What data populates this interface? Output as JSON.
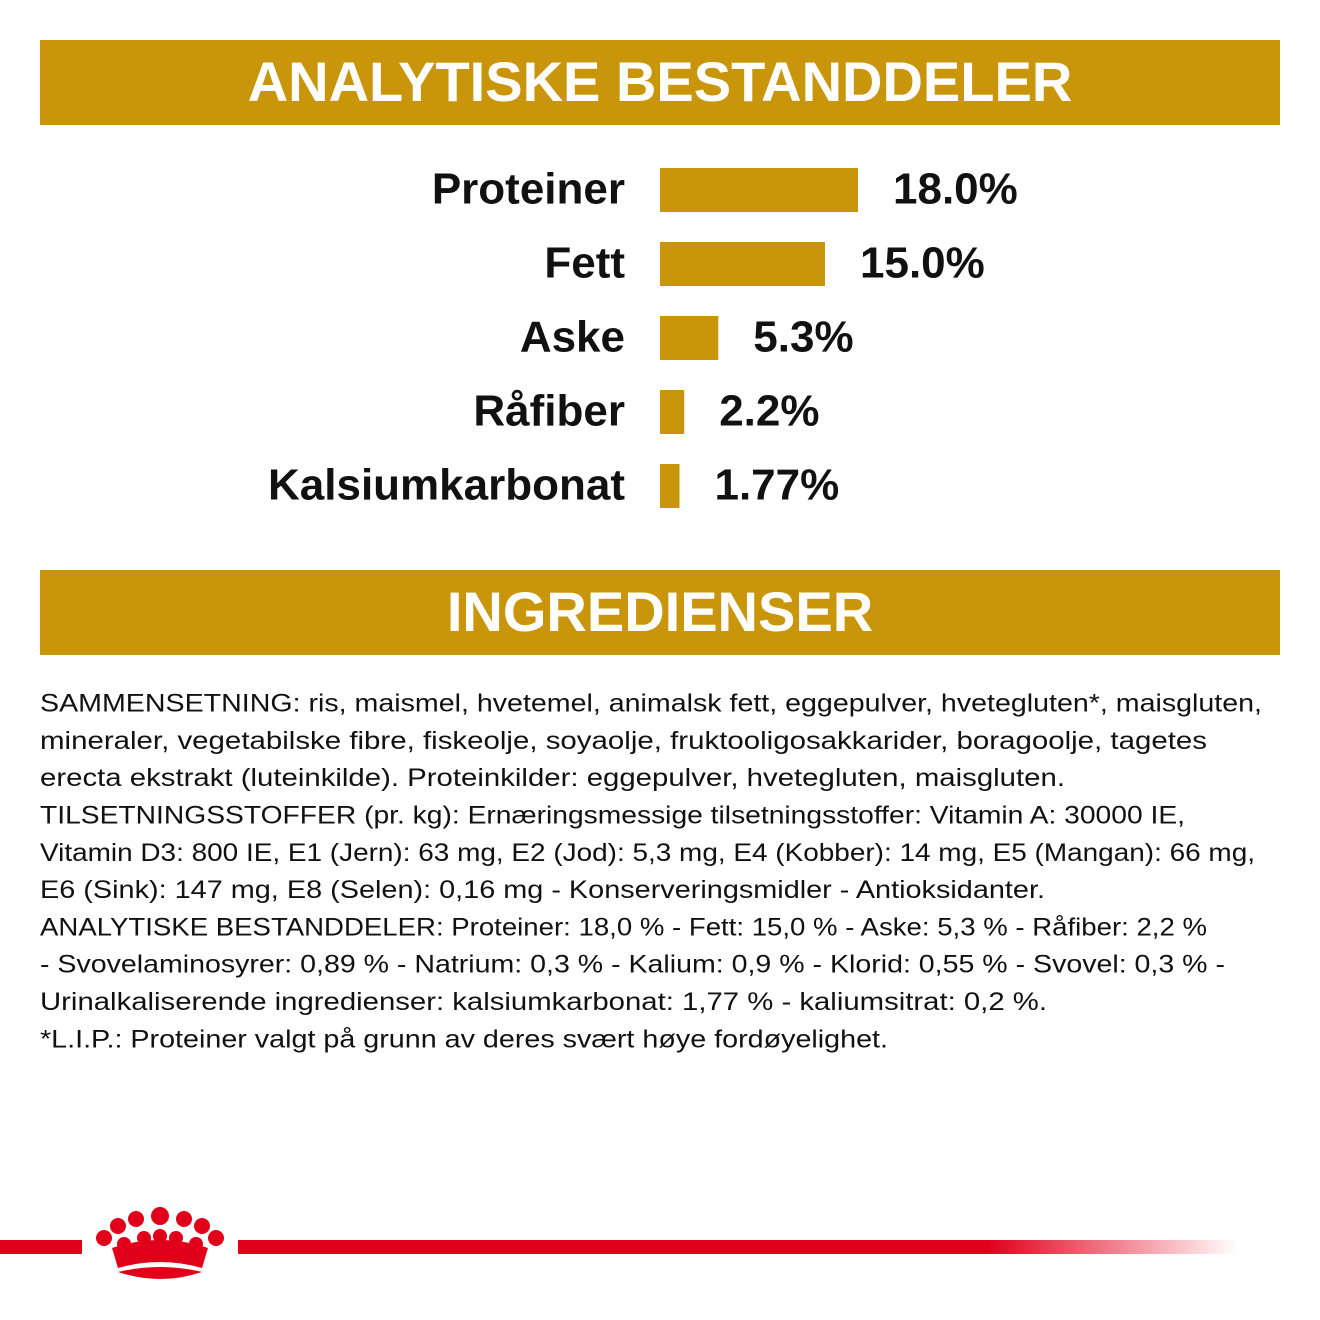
{
  "header": {
    "title": "ANALYTISKE BESTANDDELER"
  },
  "chart_data": {
    "type": "bar",
    "orientation": "horizontal",
    "color": "#c9960b",
    "categories": [
      "Proteiner",
      "Fett",
      "Aske",
      "Råfiber",
      "Kalsiumkarbonat"
    ],
    "values": [
      18.0,
      15.0,
      5.3,
      2.2,
      1.77
    ],
    "value_labels": [
      "18.0%",
      "15.0%",
      "5.3%",
      "2.2%",
      "1.77%"
    ]
  },
  "ingredients": {
    "title": "INGREDIENSER",
    "lines": [
      "SAMMENSETNING: ris, maismel, hvetemel, animalsk fett, eggepulver, hvetegluten*, maisgluten,",
      "mineraler, vegetabilske fibre, fiskeolje, soyaolje, fruktooligosakkarider, boragoolje, tagetes",
      "erecta ekstrakt (luteinkilde). Proteinkilder: eggepulver, hvetegluten, maisgluten.",
      "TILSETNINGSSTOFFER (pr. kg): Ernæringsmessige tilsetningsstoffer: Vitamin A: 30000 IE,",
      "Vitamin D3: 800 IE, E1 (Jern): 63 mg, E2 (Jod): 5,3 mg, E4 (Kobber): 14 mg, E5 (Mangan): 66 mg,",
      "E6 (Sink): 147 mg, E8 (Selen): 0,16 mg - Konserveringsmidler - Antioksidanter.",
      "ANALYTISKE BESTANDDELER: Proteiner: 18,0 % - Fett: 15,0 % - Aske: 5,3 % - Råfiber: 2,2 %",
      "- Svovelaminosyrer: 0,89 % - Natrium: 0,3 % - Kalium: 0,9 % - Klorid: 0,55 % - Svovel: 0,3 % -",
      "Urinalkaliserende ingredienser: kalsiumkarbonat: 1,77 % - kaliumsitrat: 0,2 %.",
      "*L.I.P.: Proteiner valgt på grunn av deres svært høye fordøyelighet."
    ]
  }
}
